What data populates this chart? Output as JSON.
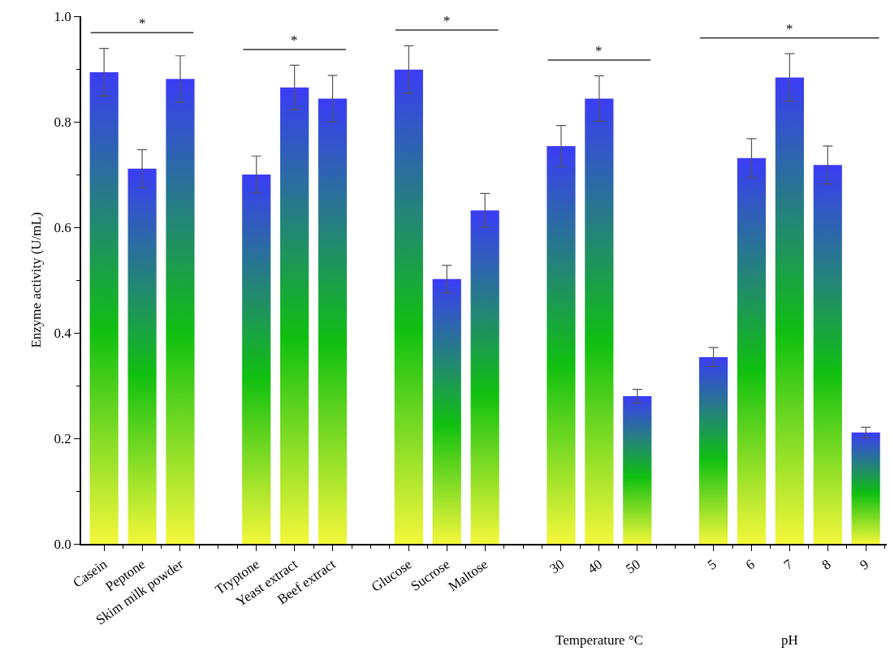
{
  "chart_data": {
    "type": "bar",
    "ylabel": "Enzyme activity (U/mL)",
    "categories": [
      "Casein",
      "Peptone",
      "Skim milk powder",
      null,
      "Tryptone",
      "Yeast extract",
      "Beef extract",
      null,
      "Glucose",
      "Sucrose",
      "Maltose",
      null,
      "30",
      "40",
      "50",
      null,
      "5",
      "6",
      "7",
      "8",
      "9"
    ],
    "values": [
      0.894,
      0.711,
      0.881,
      null,
      0.7,
      0.865,
      0.844,
      null,
      0.899,
      0.502,
      0.632,
      null,
      0.754,
      0.844,
      0.28,
      null,
      0.354,
      0.731,
      0.884,
      0.718,
      0.211
    ],
    "errors": [
      0.045,
      0.036,
      0.044,
      null,
      0.035,
      0.042,
      0.044,
      null,
      0.045,
      0.026,
      0.032,
      null,
      0.039,
      0.043,
      0.013,
      null,
      0.018,
      0.037,
      0.045,
      0.036,
      0.01
    ],
    "color": "#10c010",
    "ylim": [
      0,
      1
    ],
    "yticks": [
      {
        "value": 0,
        "label": "0.0"
      },
      {
        "value": 0.2,
        "label": "0.2"
      },
      {
        "value": 0.4,
        "label": "0.4"
      },
      {
        "value": 0.6,
        "label": "0.6"
      },
      {
        "value": 0.8,
        "label": "0.8"
      },
      {
        "value": 1,
        "label": "1.0"
      }
    ],
    "grid": false,
    "annotations": [
      "*",
      "*",
      "*",
      "*",
      "*",
      "Temperature °C",
      "pH"
    ]
  }
}
